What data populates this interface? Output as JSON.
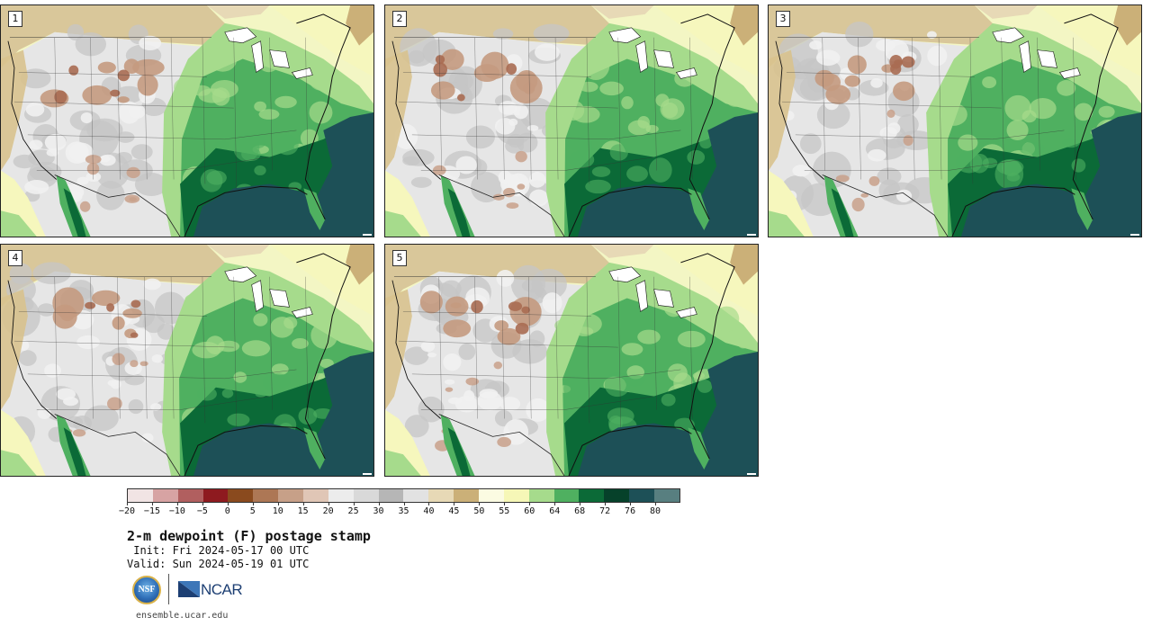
{
  "panels": [
    {
      "label": "1"
    },
    {
      "label": "2"
    },
    {
      "label": "3"
    },
    {
      "label": "4"
    },
    {
      "label": "5"
    }
  ],
  "colorbar": {
    "colors": [
      "#f1e4e4",
      "#d7a3a3",
      "#b15f5f",
      "#8e1a1f",
      "#8a4a1e",
      "#ad7755",
      "#c7a088",
      "#e0c6b6",
      "#ececec",
      "#d9d9d9",
      "#b6b6b6",
      "#e2e2e2",
      "#e7d9b6",
      "#cbb078",
      "#fbfbe2",
      "#f6f7b7",
      "#a6db8c",
      "#4fb060",
      "#0b6a37",
      "#06412a",
      "#1d5057",
      "#587f80"
    ],
    "ticks": [
      "−20",
      "−15",
      "−10",
      "−5",
      "0",
      "5",
      "10",
      "15",
      "20",
      "25",
      "30",
      "35",
      "40",
      "45",
      "50",
      "55",
      "60",
      "64",
      "68",
      "72",
      "76",
      "80"
    ]
  },
  "title": "2-m dewpoint (F) postage stamp",
  "init": " Init: Fri 2024-05-17 00 UTC",
  "valid": "Valid: Sun 2024-05-19 01 UTC",
  "logos": {
    "nsf": "NSF",
    "ncar": "NCAR"
  },
  "site": "ensemble.ucar.edu"
}
